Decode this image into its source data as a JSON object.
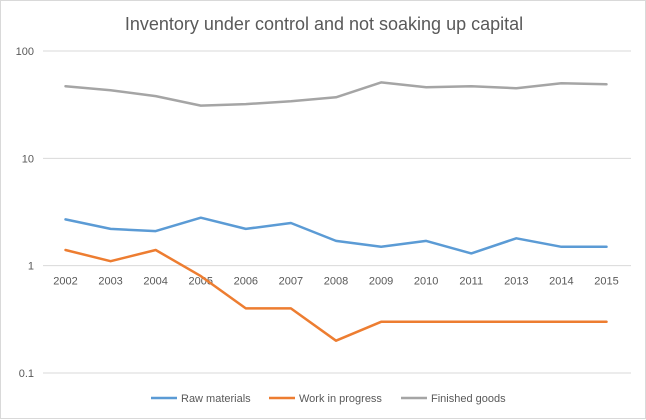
{
  "chart_data": {
    "type": "line",
    "title": "Inventory under control and not soaking up capital",
    "xlabel": "",
    "ylabel": "",
    "y_scale": "log",
    "ylim": [
      0.1,
      100
    ],
    "y_ticks": [
      0.1,
      1,
      10,
      100
    ],
    "y_tick_labels": [
      "0.1",
      "1",
      "10",
      "100"
    ],
    "grid": true,
    "legend_position": "bottom",
    "categories": [
      "2002",
      "2003",
      "2004",
      "2005",
      "2006",
      "2007",
      "2008",
      "2009",
      "2010",
      "2011",
      "2013",
      "2014",
      "2015"
    ],
    "series": [
      {
        "name": "Raw materials",
        "color": "#5B9BD5",
        "values": [
          2.7,
          2.2,
          2.1,
          2.8,
          2.2,
          2.5,
          1.7,
          1.5,
          1.7,
          1.3,
          1.8,
          1.5,
          1.5
        ]
      },
      {
        "name": "Work in progress",
        "color": "#ED7D31",
        "values": [
          1.4,
          1.1,
          1.4,
          0.8,
          0.4,
          0.4,
          0.2,
          0.3,
          0.3,
          0.3,
          0.3,
          0.3,
          0.3
        ]
      },
      {
        "name": "Finished goods",
        "color": "#A5A5A5",
        "values": [
          47,
          43,
          38,
          31,
          32,
          34,
          37,
          51,
          46,
          47,
          45,
          50,
          49
        ]
      }
    ]
  }
}
